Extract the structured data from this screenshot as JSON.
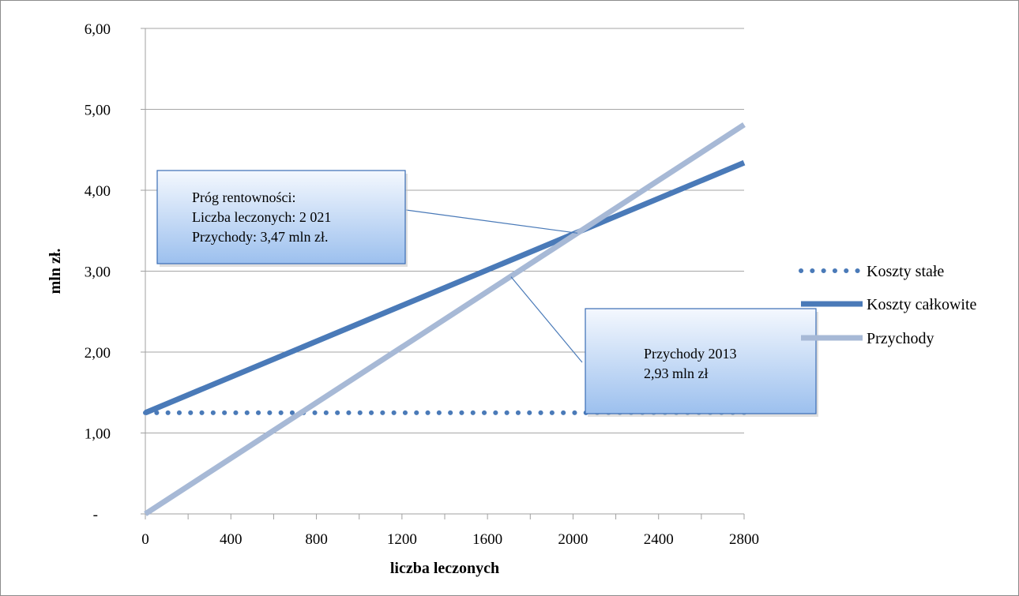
{
  "chart_data": {
    "type": "line",
    "title": "",
    "xlabel": "liczba leczonych",
    "ylabel": "mln zł.",
    "x": [
      0,
      2800
    ],
    "xlim": [
      0,
      2800
    ],
    "ylim": [
      0,
      6
    ],
    "x_ticks": [
      0,
      400,
      800,
      1200,
      1600,
      2000,
      2400,
      2800
    ],
    "x_tick_labels": [
      "0",
      "400",
      "800",
      "1200",
      "1600",
      "2000",
      "2400",
      "2800"
    ],
    "y_ticks": [
      0,
      1,
      2,
      3,
      4,
      5,
      6
    ],
    "y_tick_labels": [
      "-",
      "1,00",
      "2,00",
      "3,00",
      "4,00",
      "5,00",
      "6,00"
    ],
    "grid": "horizontal",
    "legend_position": "right",
    "series": [
      {
        "name": "Koszty stałe",
        "values": [
          1.25,
          1.25
        ],
        "color": "#4a7ab8",
        "style": "dotted"
      },
      {
        "name": "Koszty całkowite",
        "values": [
          1.25,
          4.34
        ],
        "color": "#4a7ab8",
        "style": "solid"
      },
      {
        "name": "Przychody",
        "values": [
          0.0,
          4.81
        ],
        "color": "#a7b9d6",
        "style": "solid"
      }
    ],
    "annotations": [
      {
        "lines": [
          "Próg rentowności:",
          "Liczba leczonych: 2 021",
          "Przychody: 3,47 mln zł."
        ],
        "points_to": {
          "x": 2021,
          "y": 3.47
        }
      },
      {
        "lines": [
          "Przychody 2013",
          "2,93 mln zł"
        ],
        "points_to": {
          "x": 1710,
          "y": 2.93
        }
      }
    ]
  },
  "colors": {
    "axis": "#a0a0a0",
    "grid": "#a6a6a6",
    "callout_border": "#3a6db5",
    "callout_top": "#f4f8fe",
    "callout_bottom": "#9cc0ee",
    "leader": "#4a7ab8"
  }
}
